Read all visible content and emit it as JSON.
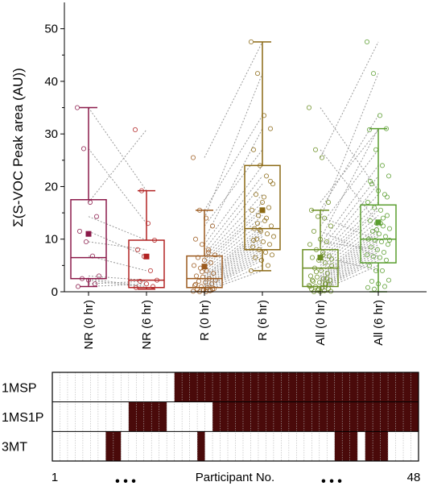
{
  "chart_data": [
    {
      "type": "box",
      "ylabel": "Σ(S-VOC Peak area (AU))",
      "ylim": [
        0,
        55
      ],
      "yticks": [
        0,
        10,
        20,
        30,
        40,
        50
      ],
      "grid": false,
      "categories": [
        "NR (0 hr)",
        "NR (6 hr)",
        "R (0 hr)",
        "R (6 hr)",
        "All (0 hr)",
        "All (6 hr)"
      ],
      "boxes": [
        {
          "name": "NR (0 hr)",
          "color": "#8B1A4A",
          "min": 1.0,
          "q1": 2.5,
          "median": 6.5,
          "q3": 17.5,
          "max": 35.0,
          "mean": 11.0,
          "points": [
            35.0,
            27.2,
            17.0,
            14.3,
            11.5,
            9.5,
            6.8,
            3.0,
            2.5,
            2.2,
            1.5,
            1.0
          ]
        },
        {
          "name": "NR (6 hr)",
          "color": "#B22222",
          "min": 0.5,
          "q1": 0.8,
          "median": 2.2,
          "q3": 9.8,
          "max": 19.2,
          "mean": 6.7,
          "points": [
            30.8,
            19.2,
            13.0,
            9.8,
            8.0,
            6.7,
            4.0,
            2.2,
            2.0,
            1.5,
            1.0,
            0.8
          ]
        },
        {
          "name": "R (0 hr)",
          "color": "#9C5A1E",
          "min": 0.0,
          "q1": 0.8,
          "median": 2.5,
          "q3": 6.8,
          "max": 15.5,
          "mean": 4.8,
          "points": [
            25.5,
            15.5,
            14.0,
            12.5,
            10.0,
            9.0,
            8.0,
            7.0,
            6.5,
            6.0,
            5.5,
            5.0,
            4.5,
            4.0,
            3.5,
            3.0,
            2.8,
            2.5,
            2.2,
            2.0,
            1.8,
            1.5,
            1.2,
            1.0,
            0.8,
            0.6,
            0.5,
            0.3,
            0.2,
            0.1,
            0.0,
            0.0,
            0.5,
            1.4,
            3.8,
            7.5
          ]
        },
        {
          "name": "R (6 hr)",
          "color": "#8B6914",
          "min": 4.0,
          "q1": 8.0,
          "median": 12.0,
          "q3": 24.0,
          "max": 47.5,
          "mean": 15.5,
          "points": [
            47.5,
            41.5,
            33.5,
            31.0,
            27.0,
            24.0,
            22.0,
            20.5,
            18.5,
            17.0,
            16.0,
            15.5,
            14.5,
            13.5,
            12.5,
            12.0,
            11.5,
            11.0,
            10.5,
            10.0,
            9.5,
            9.0,
            8.5,
            8.0,
            7.5,
            7.0,
            6.5,
            6.0,
            5.0,
            4.0,
            13.0,
            18.0,
            21.0,
            9.8,
            11.8,
            14.0
          ]
        },
        {
          "name": "All (0 hr)",
          "color": "#6B8E23",
          "min": 0.0,
          "q1": 1.0,
          "median": 4.5,
          "q3": 8.0,
          "max": 15.5,
          "mean": 6.5,
          "points": [
            35.0,
            27.0,
            25.5,
            17.0,
            15.5,
            14.3,
            14.0,
            12.5,
            11.5,
            10.0,
            9.5,
            9.0,
            8.0,
            7.0,
            6.8,
            6.5,
            6.0,
            5.5,
            5.0,
            4.5,
            4.0,
            3.5,
            3.0,
            2.8,
            2.5,
            2.2,
            2.0,
            1.8,
            1.5,
            1.2,
            1.0,
            0.8,
            0.6,
            0.5,
            0.3,
            0.2,
            0.1,
            0.0,
            0.0,
            2.5,
            1.0,
            3.8,
            7.5,
            1.4,
            2.2,
            0.5,
            1.5,
            6.2
          ]
        },
        {
          "name": "All (6 hr)",
          "color": "#5A9E2F",
          "min": 0.0,
          "q1": 5.5,
          "median": 10.0,
          "q3": 16.5,
          "max": 31.0,
          "mean": 13.2,
          "points": [
            47.5,
            41.5,
            33.5,
            31.0,
            30.8,
            27.0,
            24.0,
            22.0,
            20.5,
            19.2,
            18.5,
            17.0,
            16.0,
            15.5,
            14.5,
            13.5,
            13.0,
            12.5,
            12.0,
            11.5,
            11.0,
            10.5,
            10.0,
            9.8,
            9.5,
            9.0,
            8.5,
            8.0,
            7.5,
            7.0,
            6.7,
            6.5,
            6.0,
            5.0,
            4.0,
            4.0,
            2.2,
            2.0,
            1.5,
            1.0,
            0.8,
            0.5,
            13.0,
            18.0,
            21.0,
            11.8,
            14.0,
            9.8
          ]
        }
      ],
      "paired_lines": [
        [
          0,
          1,
          35.0,
          19.2
        ],
        [
          0,
          1,
          27.2,
          13.0
        ],
        [
          0,
          1,
          17.0,
          30.8
        ],
        [
          0,
          1,
          14.3,
          9.8
        ],
        [
          0,
          1,
          11.5,
          6.7
        ],
        [
          0,
          1,
          9.5,
          8.0
        ],
        [
          0,
          1,
          6.8,
          4.0
        ],
        [
          0,
          1,
          3.0,
          2.2
        ],
        [
          0,
          1,
          2.5,
          1.0
        ],
        [
          0,
          1,
          2.2,
          0.8
        ],
        [
          0,
          1,
          1.5,
          2.0
        ],
        [
          0,
          1,
          1.0,
          1.5
        ],
        [
          2,
          3,
          25.5,
          47.5
        ],
        [
          2,
          3,
          15.5,
          33.5
        ],
        [
          2,
          3,
          14.0,
          41.5
        ],
        [
          2,
          3,
          12.5,
          27.0
        ],
        [
          2,
          3,
          10.0,
          31.0
        ],
        [
          2,
          3,
          9.0,
          24.0
        ],
        [
          2,
          3,
          8.0,
          22.0
        ],
        [
          2,
          3,
          7.0,
          20.5
        ],
        [
          2,
          3,
          6.5,
          18.5
        ],
        [
          2,
          3,
          6.0,
          17.0
        ],
        [
          2,
          3,
          5.5,
          16.0
        ],
        [
          2,
          3,
          5.0,
          15.5
        ],
        [
          2,
          3,
          4.5,
          14.5
        ],
        [
          2,
          3,
          4.0,
          13.5
        ],
        [
          2,
          3,
          3.5,
          12.5
        ],
        [
          2,
          3,
          3.0,
          12.0
        ],
        [
          2,
          3,
          2.8,
          11.5
        ],
        [
          2,
          3,
          2.5,
          11.0
        ],
        [
          2,
          3,
          2.2,
          10.5
        ],
        [
          2,
          3,
          2.0,
          10.0
        ],
        [
          2,
          3,
          1.8,
          9.5
        ],
        [
          2,
          3,
          1.5,
          9.0
        ],
        [
          2,
          3,
          1.2,
          8.5
        ],
        [
          2,
          3,
          1.0,
          8.0
        ],
        [
          2,
          3,
          0.8,
          7.5
        ],
        [
          2,
          3,
          0.6,
          7.0
        ],
        [
          2,
          3,
          0.5,
          6.5
        ],
        [
          2,
          3,
          0.3,
          6.0
        ],
        [
          2,
          3,
          0.2,
          5.0
        ],
        [
          2,
          3,
          0.1,
          4.0
        ],
        [
          4,
          5,
          35.0,
          19.2
        ],
        [
          4,
          5,
          27.0,
          13.0
        ],
        [
          4,
          5,
          25.5,
          47.5
        ],
        [
          4,
          5,
          17.0,
          30.8
        ],
        [
          4,
          5,
          15.5,
          33.5
        ],
        [
          4,
          5,
          14.3,
          9.8
        ],
        [
          4,
          5,
          14.0,
          41.5
        ],
        [
          4,
          5,
          12.5,
          27.0
        ],
        [
          4,
          5,
          11.5,
          6.7
        ],
        [
          4,
          5,
          10.0,
          31.0
        ],
        [
          4,
          5,
          9.5,
          8.0
        ],
        [
          4,
          5,
          9.0,
          24.0
        ],
        [
          4,
          5,
          8.0,
          22.0
        ],
        [
          4,
          5,
          7.0,
          20.5
        ],
        [
          4,
          5,
          6.8,
          4.0
        ],
        [
          4,
          5,
          6.5,
          18.5
        ],
        [
          4,
          5,
          6.0,
          17.0
        ],
        [
          4,
          5,
          5.5,
          16.0
        ],
        [
          4,
          5,
          5.0,
          15.5
        ],
        [
          4,
          5,
          4.5,
          14.5
        ],
        [
          4,
          5,
          4.0,
          13.5
        ],
        [
          4,
          5,
          3.5,
          12.5
        ],
        [
          4,
          5,
          3.0,
          12.0
        ],
        [
          4,
          5,
          2.8,
          11.5
        ],
        [
          4,
          5,
          2.5,
          11.0
        ],
        [
          4,
          5,
          2.2,
          10.5
        ],
        [
          4,
          5,
          2.0,
          10.0
        ],
        [
          4,
          5,
          1.8,
          9.5
        ],
        [
          4,
          5,
          1.5,
          9.0
        ],
        [
          4,
          5,
          1.2,
          8.5
        ],
        [
          4,
          5,
          1.0,
          8.0
        ],
        [
          4,
          5,
          0.8,
          7.5
        ],
        [
          4,
          5,
          0.6,
          7.0
        ],
        [
          4,
          5,
          0.5,
          6.5
        ],
        [
          4,
          5,
          0.3,
          6.0
        ],
        [
          4,
          5,
          0.2,
          5.0
        ]
      ]
    },
    {
      "type": "heatmap",
      "rows": [
        "1MSP",
        "1MS1P",
        "3MT"
      ],
      "columns": 48,
      "xlabel": "Participant No.",
      "xlabel_start": "1",
      "xlabel_end": "48",
      "dots": "• • •",
      "filled_color": "#4A0A0A",
      "empty_color": "#ffffff",
      "filled_ranges": [
        [
          [
            17,
            48
          ]
        ],
        [
          [
            11,
            15
          ],
          [
            22,
            48
          ]
        ],
        [
          [
            8,
            9
          ],
          [
            20,
            20
          ],
          [
            38,
            40
          ],
          [
            42,
            44
          ]
        ]
      ]
    }
  ]
}
